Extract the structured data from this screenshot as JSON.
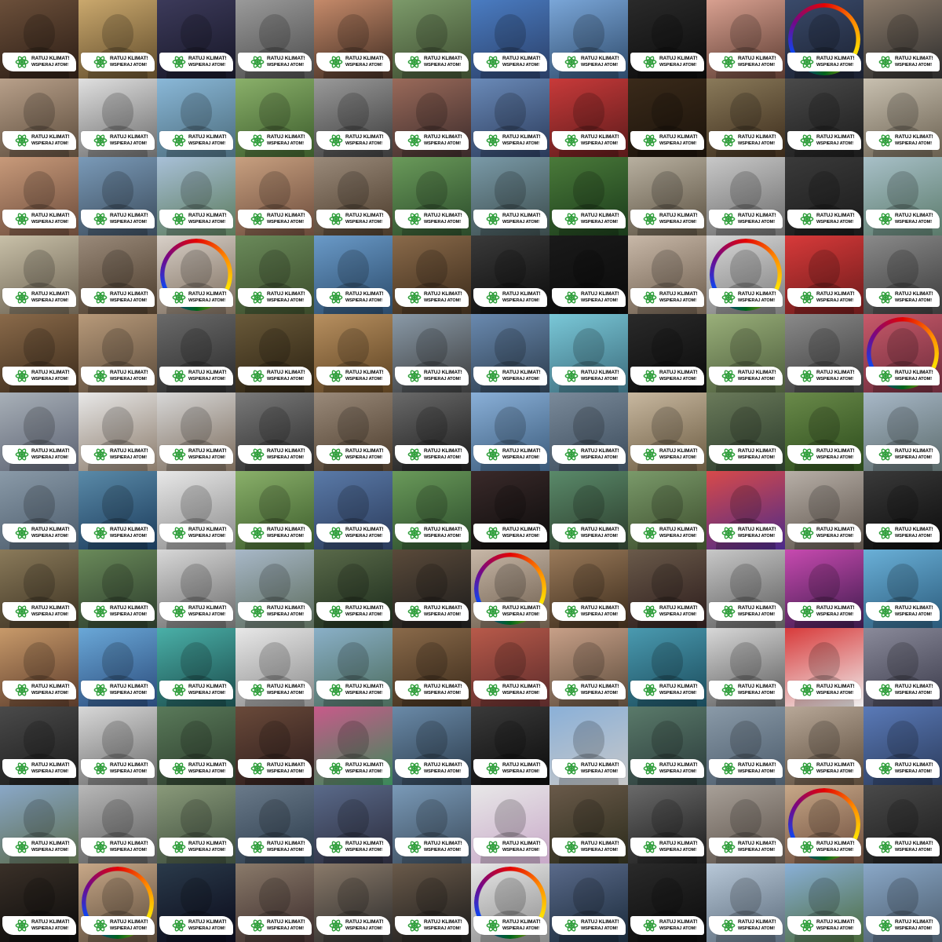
{
  "badge": {
    "line1": "RATUJ KLIMAT!",
    "line2": "WSPIERAJ ATOM!",
    "atom_color": "#2e9e3a",
    "icon": "atom-icon"
  },
  "grid": {
    "columns": 12,
    "rows": 12
  },
  "tiles": [
    {
      "c1": "#6b4f3a",
      "c2": "#2a1c14"
    },
    {
      "c1": "#caa86d",
      "c2": "#5e4a2a"
    },
    {
      "c1": "#3c3a5a",
      "c2": "#161626"
    },
    {
      "c1": "#9a9a9a",
      "c2": "#4a4a4a"
    },
    {
      "c1": "#c58a6a",
      "c2": "#3d2a20"
    },
    {
      "c1": "#7c9a6a",
      "c2": "#3b4a2e"
    },
    {
      "c1": "#4a7cc2",
      "c2": "#2a3e66"
    },
    {
      "c1": "#7aa6d8",
      "c2": "#2e4a6a"
    },
    {
      "c1": "#2a2a2a",
      "c2": "#0a0a0a"
    },
    {
      "c1": "#d8a090",
      "c2": "#5a3a30"
    },
    {
      "c1": "#3a4a6a",
      "c2": "#1a2030",
      "rainbow": true
    },
    {
      "c1": "#8a7a6a",
      "c2": "#2a2a2a"
    },
    {
      "c1": "#b8a08a",
      "c2": "#5a4a3a"
    },
    {
      "c1": "#e0e0e0",
      "c2": "#6a6a6a"
    },
    {
      "c1": "#8ab8d8",
      "c2": "#4a6a7a"
    },
    {
      "c1": "#8ab06a",
      "c2": "#3a5a2a"
    },
    {
      "c1": "#9a9a9a",
      "c2": "#3a3a3a"
    },
    {
      "c1": "#9a6a5a",
      "c2": "#3a2a2a"
    },
    {
      "c1": "#6a8ab8",
      "c2": "#2a3a5a"
    },
    {
      "c1": "#c83a3a",
      "c2": "#5a1a1a"
    },
    {
      "c1": "#3a2a1a",
      "c2": "#1a120a"
    },
    {
      "c1": "#8a7a5a",
      "c2": "#3a2a1a"
    },
    {
      "c1": "#4a4a4a",
      "c2": "#1a1a1a"
    },
    {
      "c1": "#c8c0b0",
      "c2": "#6a6050"
    },
    {
      "c1": "#c89a7a",
      "c2": "#6a4a3a"
    },
    {
      "c1": "#7a9ab8",
      "c2": "#3a4a5a"
    },
    {
      "c1": "#a8c0d8",
      "c2": "#5a7a5a"
    },
    {
      "c1": "#c8a080",
      "c2": "#6a4a3a"
    },
    {
      "c1": "#9a8a7a",
      "c2": "#4a3a2a"
    },
    {
      "c1": "#6a9a5a",
      "c2": "#2a4a2a"
    },
    {
      "c1": "#7a9aa8",
      "c2": "#3a4a4a"
    },
    {
      "c1": "#4a7a3a",
      "c2": "#1a3a1a"
    },
    {
      "c1": "#b8b0a0",
      "c2": "#5a5040"
    },
    {
      "c1": "#c8c8c8",
      "c2": "#6a6a6a"
    },
    {
      "c1": "#3a3a3a",
      "c2": "#1a1a1a"
    },
    {
      "c1": "#a8c0c8",
      "c2": "#5a7a6a"
    },
    {
      "c1": "#c8c0a8",
      "c2": "#6a6050"
    },
    {
      "c1": "#9a8a7a",
      "c2": "#4a3a2a"
    },
    {
      "c1": "#d8d0c8",
      "c2": "#7a6a5a",
      "rainbow": true
    },
    {
      "c1": "#6a8a5a",
      "c2": "#3a4a2a"
    },
    {
      "c1": "#6a9ac8",
      "c2": "#2a4a6a"
    },
    {
      "c1": "#8a6a4a",
      "c2": "#3a2a1a"
    },
    {
      "c1": "#3a3a3a",
      "c2": "#0a0a0a"
    },
    {
      "c1": "#1a1a1a",
      "c2": "#0a0a0a"
    },
    {
      "c1": "#c8b8a8",
      "c2": "#6a5a4a"
    },
    {
      "c1": "#d8d8d8",
      "c2": "#7a7a7a",
      "rainbow": true
    },
    {
      "c1": "#d83a3a",
      "c2": "#6a1a1a"
    },
    {
      "c1": "#8a8a8a",
      "c2": "#3a3a3a"
    },
    {
      "c1": "#8a6a4a",
      "c2": "#3a2a1a"
    },
    {
      "c1": "#b89a7a",
      "c2": "#5a4a3a"
    },
    {
      "c1": "#6a6a6a",
      "c2": "#2a2a2a"
    },
    {
      "c1": "#6a5a3a",
      "c2": "#2a2010"
    },
    {
      "c1": "#b89060",
      "c2": "#5a4020"
    },
    {
      "c1": "#8a9aa8",
      "c2": "#3a3a3a"
    },
    {
      "c1": "#6a8ab0",
      "c2": "#2a3a4a"
    },
    {
      "c1": "#7ac8d8",
      "c2": "#3a6a7a"
    },
    {
      "c1": "#2a2a2a",
      "c2": "#0a0a0a"
    },
    {
      "c1": "#9ab07a",
      "c2": "#4a5a3a"
    },
    {
      "c1": "#8a8a8a",
      "c2": "#3a3a3a"
    },
    {
      "c1": "#c85a6a",
      "c2": "#6a2a3a",
      "rainbow": true
    },
    {
      "c1": "#a8b0b8",
      "c2": "#5a6070"
    },
    {
      "c1": "#e8e8e8",
      "c2": "#8a7a6a"
    },
    {
      "c1": "#d8d8d8",
      "c2": "#7a6a5a"
    },
    {
      "c1": "#7a7a7a",
      "c2": "#2a2a2a"
    },
    {
      "c1": "#9a8a7a",
      "c2": "#4a3a2a"
    },
    {
      "c1": "#6a6a6a",
      "c2": "#1a1a1a"
    },
    {
      "c1": "#8ab0d8",
      "c2": "#3a5a7a"
    },
    {
      "c1": "#7a8a9a",
      "c2": "#3a4a5a"
    },
    {
      "c1": "#c8b8a0",
      "c2": "#6a5a40"
    },
    {
      "c1": "#6a7a5a",
      "c2": "#2a3a2a"
    },
    {
      "c1": "#6a8a4a",
      "c2": "#2a4a1a"
    },
    {
      "c1": "#a8b8c8",
      "c2": "#5a6a6a"
    },
    {
      "c1": "#8a9aa8",
      "c2": "#4a5a6a"
    },
    {
      "c1": "#5a8aa8",
      "c2": "#1a3a5a"
    },
    {
      "c1": "#e8e8e8",
      "c2": "#8a8a8a"
    },
    {
      "c1": "#8ab06a",
      "c2": "#3a5a2a"
    },
    {
      "c1": "#5a7aa8",
      "c2": "#2a3a5a"
    },
    {
      "c1": "#6a9a5a",
      "c2": "#2a4a2a"
    },
    {
      "c1": "#3a2a2a",
      "c2": "#0a0a0a"
    },
    {
      "c1": "#5a8a6a",
      "c2": "#2a3a2a"
    },
    {
      "c1": "#7a9a6a",
      "c2": "#3a4a2a"
    },
    {
      "c1": "#d84a4a",
      "c2": "#4a2a8a"
    },
    {
      "c1": "#b8b0a8",
      "c2": "#5a5048"
    },
    {
      "c1": "#3a3a3a",
      "c2": "#0a0a0a"
    },
    {
      "c1": "#8a7a5a",
      "c2": "#3a3020"
    },
    {
      "c1": "#6a8a5a",
      "c2": "#2a3a2a"
    },
    {
      "c1": "#d8d8d8",
      "c2": "#6a6a6a"
    },
    {
      "c1": "#a8b8c8",
      "c2": "#5a6a5a"
    },
    {
      "c1": "#5a6a4a",
      "c2": "#1a2a1a"
    },
    {
      "c1": "#5a4a3a",
      "c2": "#1a1a1a"
    },
    {
      "c1": "#c8b8a8",
      "c2": "#6a5a4a",
      "rainbow": true
    },
    {
      "c1": "#9a7a5a",
      "c2": "#3a2a1a"
    },
    {
      "c1": "#6a5a4a",
      "c2": "#2a1a1a"
    },
    {
      "c1": "#c8c8c8",
      "c2": "#5a5a5a"
    },
    {
      "c1": "#c84ab0",
      "c2": "#3a1a4a"
    },
    {
      "c1": "#6ab0d8",
      "c2": "#2a5a7a"
    },
    {
      "c1": "#c89a6a",
      "c2": "#5a3a2a"
    },
    {
      "c1": "#6aa8d8",
      "c2": "#2a4a7a"
    },
    {
      "c1": "#4ab0a8",
      "c2": "#1a4a4a"
    },
    {
      "c1": "#e8e8e8",
      "c2": "#8a8a8a"
    },
    {
      "c1": "#8ab0c8",
      "c2": "#4a6a5a"
    },
    {
      "c1": "#8a6a4a",
      "c2": "#3a2a1a"
    },
    {
      "c1": "#b85a4a",
      "c2": "#5a2a2a"
    },
    {
      "c1": "#c8a088",
      "c2": "#5a4a3a"
    },
    {
      "c1": "#4a9ab0",
      "c2": "#1a4a5a"
    },
    {
      "c1": "#d8d8d8",
      "c2": "#5a5a5a"
    },
    {
      "c1": "#d83a3a",
      "c2": "#f0f0f0"
    },
    {
      "c1": "#8a8a9a",
      "c2": "#3a3a4a"
    },
    {
      "c1": "#4a4a4a",
      "c2": "#1a1a1a"
    },
    {
      "c1": "#d8d8d8",
      "c2": "#6a6a6a"
    },
    {
      "c1": "#5a7a5a",
      "c2": "#2a3a2a"
    },
    {
      "c1": "#6a4a3a",
      "c2": "#2a1a1a"
    },
    {
      "c1": "#c85a8a",
      "c2": "#3a8a5a"
    },
    {
      "c1": "#6a8aa8",
      "c2": "#2a3a4a"
    },
    {
      "c1": "#3a3a3a",
      "c2": "#0a0a0a"
    },
    {
      "c1": "#8ab0d8",
      "c2": "#c8c8c8"
    },
    {
      "c1": "#5a7a6a",
      "c2": "#2a3a3a"
    },
    {
      "c1": "#8a9aa8",
      "c2": "#4a5a6a"
    },
    {
      "c1": "#b8a898",
      "c2": "#5a4a3a"
    },
    {
      "c1": "#5a7ab8",
      "c2": "#2a3a5a"
    },
    {
      "c1": "#8aa8c8",
      "c2": "#5a6a4a"
    },
    {
      "c1": "#b8b8b8",
      "c2": "#5a5a5a"
    },
    {
      "c1": "#8a9a7a",
      "c2": "#3a4a3a"
    },
    {
      "c1": "#6a7a8a",
      "c2": "#2a3a4a"
    },
    {
      "c1": "#5a6a8a",
      "c2": "#2a2a3a"
    },
    {
      "c1": "#7a9ab8",
      "c2": "#3a4a5a"
    },
    {
      "c1": "#e8e8e8",
      "c2": "#c8a8c8"
    },
    {
      "c1": "#6a5a4a",
      "c2": "#2a2a1a"
    },
    {
      "c1": "#6a6a6a",
      "c2": "#1a1a1a"
    },
    {
      "c1": "#a8a098",
      "c2": "#5a5048"
    },
    {
      "c1": "#c8a888",
      "c2": "#6a4a3a",
      "rainbow": true
    },
    {
      "c1": "#4a4a4a",
      "c2": "#1a1a1a"
    },
    {
      "c1": "#3a3028",
      "c2": "#0a0a0a"
    },
    {
      "c1": "#c8a888",
      "c2": "#5a4a3a",
      "rainbow": true
    },
    {
      "c1": "#2a3a4a",
      "c2": "#0a0a1a"
    },
    {
      "c1": "#8a7a6a",
      "c2": "#3a2a2a"
    },
    {
      "c1": "#8a7a6a",
      "c2": "#2a2a2a"
    },
    {
      "c1": "#6a5a4a",
      "c2": "#1a1a1a"
    },
    {
      "c1": "#e8e8e8",
      "c2": "#8a8a8a",
      "rainbow": true
    },
    {
      "c1": "#5a6a8a",
      "c2": "#1a2a3a"
    },
    {
      "c1": "#2a2a2a",
      "c2": "#0a0a0a"
    },
    {
      "c1": "#b8c8d8",
      "c2": "#5a6a7a"
    },
    {
      "c1": "#8ab0d8",
      "c2": "#4a6a3a"
    },
    {
      "c1": "#8aa8c8",
      "c2": "#4a5a6a"
    }
  ]
}
